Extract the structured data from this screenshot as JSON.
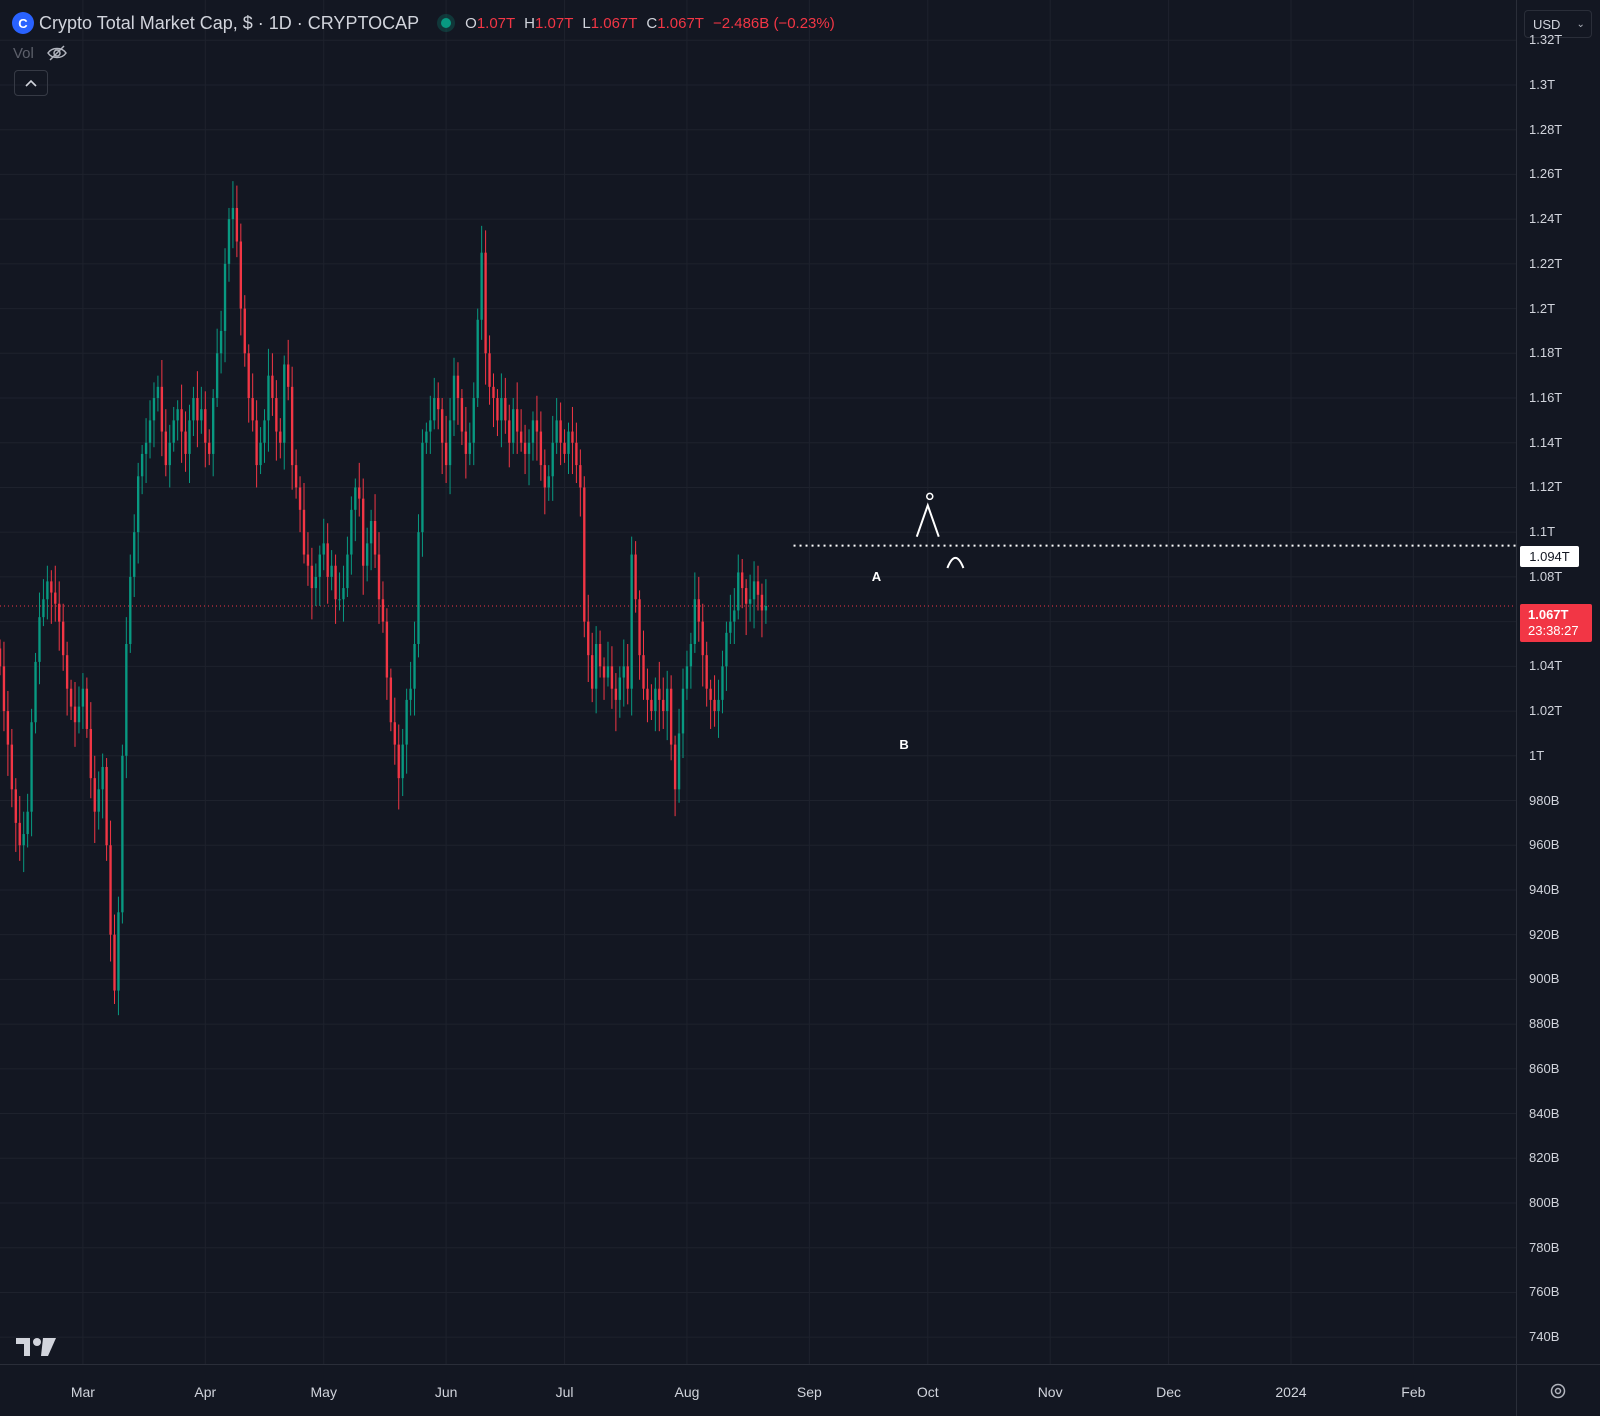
{
  "legend": {
    "symbol_icon": "coin-icon",
    "title": "Crypto Total Market Cap, $ · 1D · CRYPTOCAP",
    "open_key": "O",
    "open_val": "1.07T",
    "high_key": "H",
    "high_val": "1.07T",
    "low_key": "L",
    "low_val": "1.067T",
    "close_key": "C",
    "close_val": "1.067T",
    "change": "−2.486B (−0.23%)"
  },
  "volume": {
    "label": "Vol",
    "icon": "eye-off-icon"
  },
  "currency": {
    "label": "USD",
    "icon": "chevron-down-icon"
  },
  "price_labels": {
    "level": "1.094T",
    "last_price": "1.067T",
    "countdown": "23:38:27"
  },
  "colors": {
    "background": "#131722",
    "up": "#089981",
    "down": "#f23645",
    "grid": "#1e222d",
    "text": "#d1d4dc"
  },
  "chart_data": {
    "type": "candlestick",
    "title": "Crypto Total Market Cap, $ · 1D · CRYPTOCAP",
    "yaxis_ticks": [
      "1.32T",
      "1.3T",
      "1.28T",
      "1.26T",
      "1.24T",
      "1.22T",
      "1.2T",
      "1.18T",
      "1.16T",
      "1.14T",
      "1.12T",
      "1.1T",
      "1.08T",
      "1.06T",
      "1.04T",
      "1.02T",
      "1T",
      "980B",
      "960B",
      "940B",
      "920B",
      "900B",
      "880B",
      "860B",
      "840B",
      "820B",
      "800B",
      "780B",
      "760B",
      "740B"
    ],
    "yaxis_values": [
      1320,
      1300,
      1280,
      1260,
      1240,
      1220,
      1200,
      1180,
      1160,
      1140,
      1120,
      1100,
      1080,
      1060,
      1040,
      1020,
      1000,
      980,
      960,
      940,
      920,
      900,
      880,
      860,
      840,
      820,
      800,
      780,
      760,
      740
    ],
    "xaxis_ticks": [
      {
        "label": "Mar",
        "date": "2023-03-01"
      },
      {
        "label": "Apr",
        "date": "2023-04-01"
      },
      {
        "label": "May",
        "date": "2023-05-01"
      },
      {
        "label": "Jun",
        "date": "2023-06-01"
      },
      {
        "label": "Jul",
        "date": "2023-07-01"
      },
      {
        "label": "Aug",
        "date": "2023-08-01"
      },
      {
        "label": "Sep",
        "date": "2023-09-01"
      },
      {
        "label": "Oct",
        "date": "2023-10-01"
      },
      {
        "label": "Nov",
        "date": "2023-11-01"
      },
      {
        "label": "Dec",
        "date": "2023-12-01"
      },
      {
        "label": "2024",
        "date": "2024-01-01"
      },
      {
        "label": "Feb",
        "date": "2024-02-01"
      }
    ],
    "ylim_billions": [
      728,
      1338
    ],
    "xlim": [
      "2023-02-08",
      "2024-02-27"
    ],
    "grid": true,
    "horizontal_level": {
      "value": 1094,
      "start_date": "2023-08-28",
      "style": "dotted",
      "label": "1.094T"
    },
    "last_price": {
      "value": 1067,
      "label": "1.067T"
    },
    "wave_labels": [
      {
        "text": "A",
        "date": "2023-09-18",
        "value": 1080
      },
      {
        "text": "B",
        "date": "2023-09-25",
        "value": 1005
      }
    ],
    "series": [
      {
        "start": "2023-02-08",
        "closes": [
          1040,
          1020,
          1005,
          985,
          970,
          960,
          965,
          975,
          1015,
          1042,
          1062,
          1070,
          1078,
          1073,
          1068,
          1060,
          1045,
          1030,
          1022,
          1015,
          1022,
          1030,
          1012,
          990,
          975,
          985,
          995,
          960,
          920,
          895,
          930,
          1000,
          1050,
          1080,
          1100,
          1125,
          1135,
          1140,
          1150,
          1160,
          1165,
          1145,
          1130,
          1140,
          1150,
          1155,
          1145,
          1135,
          1150,
          1160,
          1150,
          1155,
          1140,
          1135,
          1160,
          1180,
          1190,
          1220,
          1240,
          1245,
          1230,
          1200,
          1180,
          1160,
          1150,
          1130,
          1140,
          1150,
          1170,
          1160,
          1145,
          1140,
          1175,
          1165,
          1130,
          1120,
          1110,
          1090,
          1085,
          1075,
          1080,
          1090,
          1095,
          1080,
          1085,
          1070,
          1070,
          1075,
          1090,
          1110,
          1120,
          1115,
          1085,
          1095,
          1105,
          1090,
          1070,
          1060,
          1035,
          1015,
          1005,
          990,
          1005,
          1025,
          1030,
          1050,
          1100,
          1140,
          1145,
          1150,
          1160,
          1155,
          1140,
          1130,
          1150,
          1170,
          1160,
          1145,
          1135,
          1140,
          1160,
          1195,
          1225,
          1180,
          1165,
          1160,
          1150,
          1160,
          1150,
          1140,
          1155,
          1145,
          1140,
          1135,
          1140,
          1150,
          1145,
          1130,
          1120,
          1125,
          1140,
          1150,
          1140,
          1135,
          1145,
          1140,
          1130,
          1120,
          1060,
          1045,
          1030,
          1050,
          1040,
          1035,
          1040,
          1030,
          1025,
          1035,
          1040,
          1030,
          1090,
          1070,
          1045,
          1030,
          1025,
          1020,
          1030,
          1025,
          1020,
          1030,
          1005,
          985,
          1010,
          1030,
          1040,
          1050,
          1070,
          1060,
          1045,
          1030,
          1025,
          1020,
          1025,
          1040,
          1055,
          1060,
          1065,
          1082,
          1075,
          1068,
          1070,
          1078,
          1072,
          1065,
          1067
        ]
      }
    ]
  },
  "bottom": {
    "logo": "tradingview-logo-icon",
    "settings_icon": "gear-icon"
  }
}
